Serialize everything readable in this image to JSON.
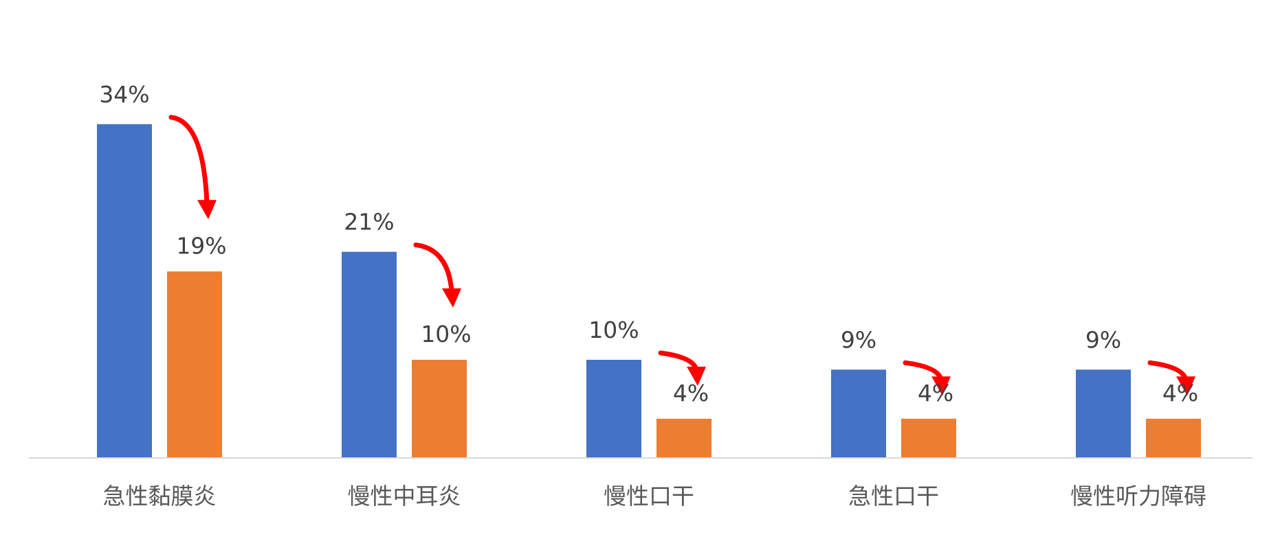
{
  "chart_data": {
    "type": "bar",
    "title": "",
    "xlabel": "",
    "ylabel": "",
    "ylim": [
      0,
      40
    ],
    "grid": false,
    "legend": "none",
    "categories": [
      "急性黏膜炎",
      "慢性中耳炎",
      "慢性口干",
      "急性口干",
      "慢性听力障碍"
    ],
    "series": [
      {
        "values": [
          34,
          21,
          10,
          9,
          9
        ],
        "labels": [
          "34%",
          "21%",
          "10%",
          "9%",
          "9%"
        ],
        "color": "#4472C4"
      },
      {
        "values": [
          19,
          10,
          4,
          4,
          4
        ],
        "labels": [
          "19%",
          "10%",
          "4%",
          "4%",
          "4%"
        ],
        "color": "#ED7D31"
      }
    ],
    "annotations": {
      "type": "decrease-arrows",
      "color": "#FF0000"
    },
    "axis_color": "#D9D9D9"
  }
}
